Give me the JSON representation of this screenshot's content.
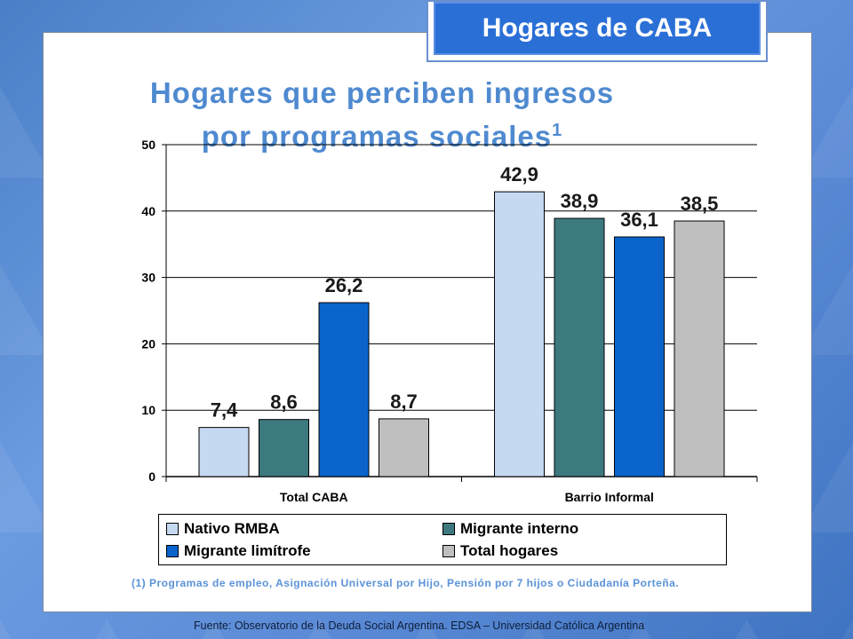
{
  "badge": {
    "text": "Hogares de CABA"
  },
  "title": {
    "line1": "Hogares que perciben ingresos",
    "line2": "por programas sociales",
    "sup": "1"
  },
  "footnote": "(1) Programas de empleo, Asignación Universal por Hijo, Pensión por 7 hijos o Ciudadanía Porteña.",
  "source": "Fuente:  Observatorio de  la Deuda Social Argentina. EDSA  – Universidad Católica Argentina",
  "chart_data": {
    "type": "bar",
    "categories": [
      "Total  CABA",
      "Barrio Informal"
    ],
    "series": [
      {
        "name": "Nativo RMBA",
        "color": "#c5d9f1",
        "values": [
          7.4,
          42.9
        ],
        "labels": [
          "7,4",
          "42,9"
        ]
      },
      {
        "name": "Migrante interno",
        "color": "#3d7a80",
        "values": [
          8.6,
          38.9
        ],
        "labels": [
          "8,6",
          "38,9"
        ]
      },
      {
        "name": "Migrante limítrofe",
        "color": "#0a64cc",
        "values": [
          26.2,
          36.1
        ],
        "labels": [
          "26,2",
          "36,1"
        ]
      },
      {
        "name": "Total hogares",
        "color": "#bfbfbf",
        "values": [
          8.7,
          38.5
        ],
        "labels": [
          "8,7",
          "38,5"
        ]
      }
    ],
    "ylim": [
      0,
      50
    ],
    "yticks": [
      0,
      10,
      20,
      30,
      40,
      50
    ],
    "grid": true,
    "legend_position": "bottom"
  }
}
